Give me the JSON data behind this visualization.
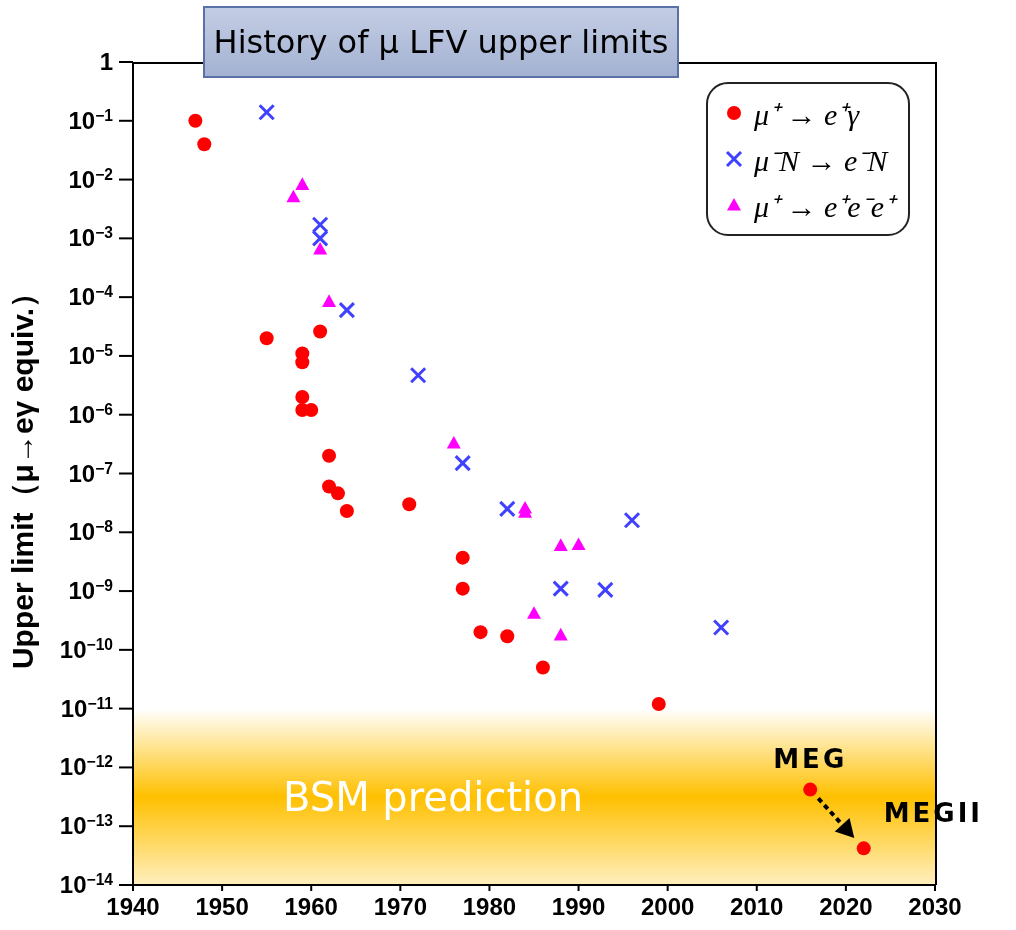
{
  "chart_data": {
    "type": "scatter",
    "title": "History of μ LFV upper limits",
    "ylabel": "Upper limit（μ→eγ equiv.）",
    "xlim": [
      1940,
      2030
    ],
    "xticks": [
      1940,
      1950,
      1960,
      1970,
      1980,
      1990,
      2000,
      2010,
      2020,
      2030
    ],
    "ylim": [
      1e-14,
      1
    ],
    "log": "y",
    "yticks": [
      {
        "value": 1e-14,
        "label": "10$^{−14}$"
      },
      {
        "value": 1e-13,
        "label": "10$^{−13}$"
      },
      {
        "value": 1e-12,
        "label": "10$^{−12}$"
      },
      {
        "value": 1e-11,
        "label": "10$^{−11}$"
      },
      {
        "value": 1e-10,
        "label": "10$^{−10}$"
      },
      {
        "value": 1e-09,
        "label": "10$^{−9}$"
      },
      {
        "value": 1e-08,
        "label": "10$^{−8}$"
      },
      {
        "value": 1e-07,
        "label": "10$^{−7}$"
      },
      {
        "value": 1e-06,
        "label": "10$^{−6}$"
      },
      {
        "value": 1e-05,
        "label": "10$^{−5}$"
      },
      {
        "value": 0.0001,
        "label": "10$^{−4}$"
      },
      {
        "value": 0.001,
        "label": "10$^{−3}$"
      },
      {
        "value": 0.01,
        "label": "10$^{−2}$"
      },
      {
        "value": 0.1,
        "label": "10$^{−1}$"
      },
      1
    ],
    "legend": "top right",
    "bands": [
      {
        "axis": "y",
        "from": 1e-14,
        "to": 1e-11,
        "label": "BSM prediction",
        "color": "#ffc000"
      }
    ],
    "annotations": [
      {
        "text": "MEG",
        "x": 2016,
        "y": 4.2e-13
      },
      {
        "text": "MEGII",
        "x": 2022,
        "y": 4.2e-14
      }
    ],
    "series": [
      {
        "name": "μ⁺ → e⁺γ",
        "color": "#ff0000",
        "marker": "circle",
        "x": [
          1947,
          1948,
          1955,
          1959,
          1959,
          1961,
          1959,
          1959,
          1960,
          1962,
          1962,
          1963,
          1964,
          1971,
          1977,
          1977,
          1979,
          1982,
          1986,
          1999
        ],
        "values": [
          0.1,
          0.04,
          2e-05,
          1.1e-05,
          7.8e-06,
          2.6e-05,
          2e-06,
          1.2e-06,
          1.2e-06,
          2e-07,
          6e-08,
          4.6e-08,
          2.3e-08,
          3e-08,
          3.7e-09,
          1.1e-09,
          2e-10,
          1.7e-10,
          5e-11,
          1.2e-11
        ]
      },
      {
        "name": "μ⁻N → e⁻N",
        "color": "#4040ff",
        "marker": "cross",
        "x": [
          1955,
          1961,
          1961,
          1964,
          1972,
          1977,
          1982,
          1996,
          1988,
          1993,
          2006
        ],
        "values": [
          0.14,
          0.0017,
          0.001,
          6e-05,
          4.7e-06,
          1.5e-07,
          2.5e-08,
          1.6e-08,
          1.1e-09,
          1.05e-09,
          2.4e-10
        ]
      },
      {
        "name": "μ⁺ → e⁺e⁻e⁺",
        "color": "#ff00ff",
        "marker": "triangle",
        "x": [
          1959,
          1958,
          1961,
          1962,
          1976,
          1984,
          1984,
          1988,
          1990,
          1985,
          1988
        ],
        "values": [
          0.0083,
          0.0051,
          0.00066,
          8.5e-05,
          3.3e-07,
          2.6e-08,
          2.2e-08,
          6e-09,
          6.2e-09,
          4.2e-10,
          1.8e-10
        ]
      },
      {
        "color": "#ff0000",
        "marker": "circle",
        "x": [
          2016,
          2022
        ],
        "values": [
          4.2e-13,
          4.2e-14
        ]
      }
    ]
  }
}
